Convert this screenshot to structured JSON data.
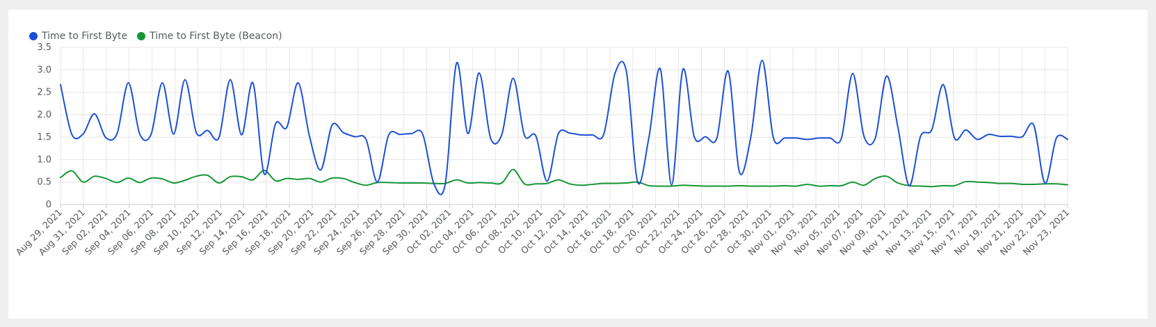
{
  "chart_data": {
    "type": "line",
    "title": "",
    "xlabel": "",
    "ylabel": "",
    "ylim": [
      0,
      3.5
    ],
    "yticks": [
      "0",
      "0.5",
      "1.0",
      "1.5",
      "2.0",
      "2.5",
      "3.0",
      "3.5"
    ],
    "grid": true,
    "legend_position": "top-left",
    "x_tick_labels": [
      "Aug 29, 2021",
      "Aug 31, 2021",
      "Sep 02, 2021",
      "Sep 04, 2021",
      "Sep 06, 2021",
      "Sep 08, 2021",
      "Sep 10, 2021",
      "Sep 12, 2021",
      "Sep 14, 2021",
      "Sep 16, 2021",
      "Sep 18, 2021",
      "Sep 20, 2021",
      "Sep 22, 2021",
      "Sep 24, 2021",
      "Sep 26, 2021",
      "Sep 28, 2021",
      "Sep 30, 2021",
      "Oct 02, 2021",
      "Oct 04, 2021",
      "Oct 06, 2021",
      "Oct 08, 2021",
      "Oct 10, 2021",
      "Oct 12, 2021",
      "Oct 14, 2021",
      "Oct 16, 2021",
      "Oct 18, 2021",
      "Oct 20, 2021",
      "Oct 22, 2021",
      "Oct 24, 2021",
      "Oct 26, 2021",
      "Oct 28, 2021",
      "Oct 30, 2021",
      "Nov 01, 2021",
      "Nov 03, 2021",
      "Nov 05, 2021",
      "Nov 07, 2021",
      "Nov 09, 2021",
      "Nov 11, 2021",
      "Nov 13, 2021",
      "Nov 15, 2021",
      "Nov 17, 2021",
      "Nov 19, 2021",
      "Nov 21, 2021",
      "Nov 22, 2021",
      "Nov 23, 2021"
    ],
    "series": [
      {
        "name": "Time to First Byte",
        "color": "#1a4fd6",
        "points": [
          [
            0,
            2.67
          ],
          [
            1,
            1.56
          ],
          [
            2,
            1.57
          ],
          [
            3,
            2.02
          ],
          [
            4,
            1.49
          ],
          [
            5,
            1.58
          ],
          [
            6,
            2.71
          ],
          [
            7,
            1.57
          ],
          [
            8,
            1.56
          ],
          [
            9,
            2.71
          ],
          [
            10,
            1.57
          ],
          [
            11,
            2.78
          ],
          [
            12,
            1.6
          ],
          [
            13,
            1.65
          ],
          [
            14,
            1.49
          ],
          [
            15,
            2.78
          ],
          [
            16,
            1.55
          ],
          [
            17,
            2.71
          ],
          [
            18,
            0.68
          ],
          [
            19,
            1.8
          ],
          [
            20,
            1.72
          ],
          [
            21,
            2.71
          ],
          [
            22,
            1.52
          ],
          [
            23,
            0.77
          ],
          [
            24,
            1.77
          ],
          [
            25,
            1.6
          ],
          [
            26,
            1.51
          ],
          [
            27,
            1.45
          ],
          [
            28,
            0.5
          ],
          [
            29,
            1.55
          ],
          [
            30,
            1.56
          ],
          [
            31,
            1.58
          ],
          [
            32,
            1.57
          ],
          [
            33,
            0.46
          ],
          [
            34,
            0.46
          ],
          [
            35,
            3.15
          ],
          [
            36,
            1.58
          ],
          [
            37,
            2.93
          ],
          [
            38,
            1.48
          ],
          [
            39,
            1.56
          ],
          [
            40,
            2.81
          ],
          [
            41,
            1.54
          ],
          [
            42,
            1.53
          ],
          [
            43,
            0.52
          ],
          [
            44,
            1.58
          ],
          [
            45,
            1.59
          ],
          [
            46,
            1.55
          ],
          [
            47,
            1.55
          ],
          [
            48,
            1.56
          ],
          [
            49,
            2.92
          ],
          [
            50,
            2.97
          ],
          [
            51,
            0.5
          ],
          [
            52,
            1.5
          ],
          [
            53,
            3.02
          ],
          [
            54,
            0.44
          ],
          [
            55,
            3.01
          ],
          [
            56,
            1.51
          ],
          [
            57,
            1.51
          ],
          [
            58,
            1.48
          ],
          [
            59,
            2.97
          ],
          [
            60,
            0.72
          ],
          [
            61,
            1.5
          ],
          [
            62,
            3.21
          ],
          [
            63,
            1.48
          ],
          [
            64,
            1.48
          ],
          [
            65,
            1.48
          ],
          [
            66,
            1.45
          ],
          [
            67,
            1.48
          ],
          [
            68,
            1.48
          ],
          [
            69,
            1.47
          ],
          [
            70,
            2.92
          ],
          [
            71,
            1.52
          ],
          [
            72,
            1.48
          ],
          [
            73,
            2.86
          ],
          [
            74,
            1.72
          ],
          [
            75,
            0.42
          ],
          [
            76,
            1.52
          ],
          [
            77,
            1.67
          ],
          [
            78,
            2.67
          ],
          [
            79,
            1.48
          ],
          [
            80,
            1.66
          ],
          [
            81,
            1.45
          ],
          [
            82,
            1.56
          ],
          [
            83,
            1.52
          ],
          [
            84,
            1.52
          ],
          [
            85,
            1.51
          ],
          [
            86,
            1.77
          ],
          [
            87,
            0.47
          ],
          [
            88,
            1.48
          ],
          [
            89,
            1.45
          ]
        ]
      },
      {
        "name": "Time to First Byte (Beacon)",
        "color": "#169636",
        "points": [
          [
            0,
            0.6
          ],
          [
            1,
            0.75
          ],
          [
            2,
            0.5
          ],
          [
            3,
            0.63
          ],
          [
            4,
            0.58
          ],
          [
            5,
            0.49
          ],
          [
            6,
            0.59
          ],
          [
            7,
            0.49
          ],
          [
            8,
            0.59
          ],
          [
            9,
            0.57
          ],
          [
            10,
            0.48
          ],
          [
            11,
            0.54
          ],
          [
            12,
            0.63
          ],
          [
            13,
            0.65
          ],
          [
            14,
            0.48
          ],
          [
            15,
            0.62
          ],
          [
            16,
            0.62
          ],
          [
            17,
            0.55
          ],
          [
            18,
            0.76
          ],
          [
            19,
            0.53
          ],
          [
            20,
            0.58
          ],
          [
            21,
            0.56
          ],
          [
            22,
            0.58
          ],
          [
            23,
            0.5
          ],
          [
            24,
            0.59
          ],
          [
            25,
            0.58
          ],
          [
            26,
            0.49
          ],
          [
            27,
            0.43
          ],
          [
            28,
            0.49
          ],
          [
            29,
            0.49
          ],
          [
            30,
            0.48
          ],
          [
            31,
            0.48
          ],
          [
            32,
            0.48
          ],
          [
            33,
            0.47
          ],
          [
            34,
            0.47
          ],
          [
            35,
            0.55
          ],
          [
            36,
            0.48
          ],
          [
            37,
            0.49
          ],
          [
            38,
            0.48
          ],
          [
            39,
            0.48
          ],
          [
            40,
            0.78
          ],
          [
            41,
            0.46
          ],
          [
            42,
            0.46
          ],
          [
            43,
            0.47
          ],
          [
            44,
            0.55
          ],
          [
            45,
            0.46
          ],
          [
            46,
            0.43
          ],
          [
            47,
            0.45
          ],
          [
            48,
            0.47
          ],
          [
            49,
            0.47
          ],
          [
            50,
            0.48
          ],
          [
            51,
            0.5
          ],
          [
            52,
            0.42
          ],
          [
            53,
            0.41
          ],
          [
            54,
            0.41
          ],
          [
            55,
            0.43
          ],
          [
            56,
            0.42
          ],
          [
            57,
            0.41
          ],
          [
            58,
            0.41
          ],
          [
            59,
            0.41
          ],
          [
            60,
            0.42
          ],
          [
            61,
            0.41
          ],
          [
            62,
            0.41
          ],
          [
            63,
            0.41
          ],
          [
            64,
            0.42
          ],
          [
            65,
            0.41
          ],
          [
            66,
            0.45
          ],
          [
            67,
            0.41
          ],
          [
            68,
            0.42
          ],
          [
            69,
            0.42
          ],
          [
            70,
            0.5
          ],
          [
            71,
            0.43
          ],
          [
            72,
            0.58
          ],
          [
            73,
            0.63
          ],
          [
            74,
            0.48
          ],
          [
            75,
            0.42
          ],
          [
            76,
            0.41
          ],
          [
            77,
            0.4
          ],
          [
            78,
            0.42
          ],
          [
            79,
            0.42
          ],
          [
            80,
            0.51
          ],
          [
            81,
            0.5
          ],
          [
            82,
            0.49
          ],
          [
            83,
            0.47
          ],
          [
            84,
            0.47
          ],
          [
            85,
            0.45
          ],
          [
            86,
            0.45
          ],
          [
            87,
            0.46
          ],
          [
            88,
            0.46
          ],
          [
            89,
            0.44
          ]
        ]
      }
    ]
  }
}
